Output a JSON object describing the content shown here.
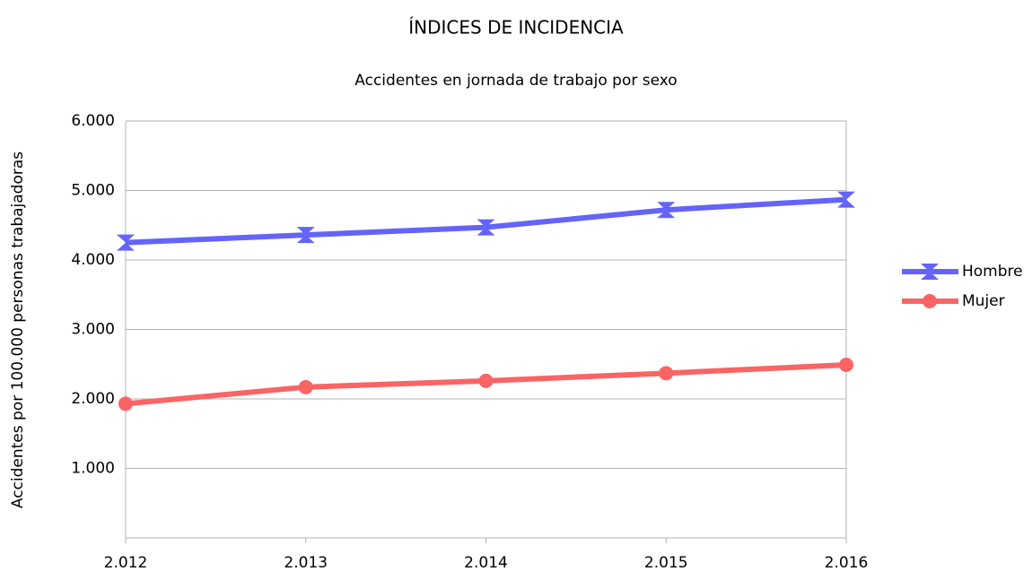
{
  "chart_data": {
    "type": "line",
    "title": "ÍNDICES DE INCIDENCIA",
    "subtitle": "Accidentes en jornada de trabajo por sexo",
    "y_label": "Accidentes por 100.000 personas trabajadoras",
    "categories": [
      "2.012",
      "2.013",
      "2.014",
      "2.015",
      "2.016"
    ],
    "series": [
      {
        "name": "Hombre",
        "color": "#6464fa",
        "marker": "hourglass",
        "values": [
          4250,
          4360,
          4470,
          4720,
          4870
        ]
      },
      {
        "name": "Mujer",
        "color": "#fa6464",
        "marker": "circle",
        "values": [
          1930,
          2170,
          2260,
          2370,
          2490
        ]
      }
    ],
    "ylim": [
      0,
      6000
    ],
    "yticks": [
      {
        "value": 1000,
        "label": "1.000"
      },
      {
        "value": 2000,
        "label": "2.000"
      },
      {
        "value": 3000,
        "label": "3.000"
      },
      {
        "value": 4000,
        "label": "4.000"
      },
      {
        "value": 5000,
        "label": "5.000"
      },
      {
        "value": 6000,
        "label": "6.000"
      }
    ],
    "grid": true,
    "legend": "right"
  }
}
